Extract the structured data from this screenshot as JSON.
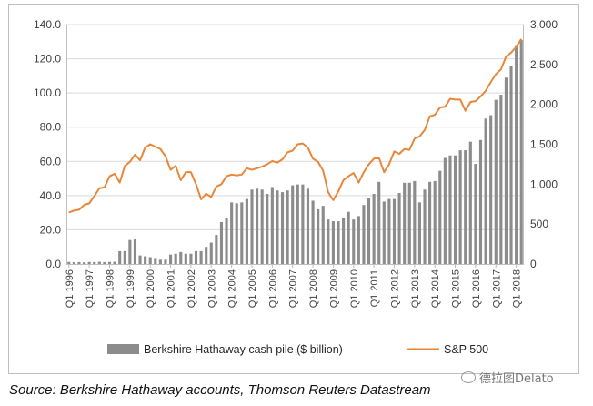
{
  "chart_data": {
    "type": "bar+line",
    "title": "",
    "xlabel": "",
    "ylabel": "",
    "y_left": {
      "min": 0,
      "max": 140,
      "step": 20,
      "tick_labels": [
        "0.0",
        "20.0",
        "40.0",
        "60.0",
        "80.0",
        "100.0",
        "120.0",
        "140.0"
      ]
    },
    "y_right": {
      "min": 0,
      "max": 3000,
      "step": 500,
      "tick_labels": [
        "0",
        "500",
        "1,000",
        "1,500",
        "2,000",
        "2,500",
        "3,000"
      ]
    },
    "x_tick_labels": [
      "Q1 1996",
      "Q1 1997",
      "Q1 1998",
      "Q1 1999",
      "Q1 2000",
      "Q1 2001",
      "Q1 2002",
      "Q1 2003",
      "Q1 2004",
      "Q1 2005",
      "Q1 2006",
      "Q1 2007",
      "Q1 2008",
      "Q1 2009",
      "Q1 2010",
      "Q1 2011",
      "Q1 2012",
      "Q1 2013",
      "Q1 2014",
      "Q1 2015",
      "Q1 2016",
      "Q1 2017",
      "Q1 2018"
    ],
    "gridlines": true,
    "legend_position": "bottom",
    "series": [
      {
        "name": "Berkshire Hathaway cash pile ($ billion)",
        "type": "bar",
        "axis": "left",
        "color": "#8c8c8c",
        "values": [
          1.2,
          1.0,
          1.1,
          1.0,
          1.2,
          1.1,
          1.3,
          1.1,
          1.2,
          1.3,
          7.5,
          7.5,
          14.0,
          14.5,
          5.0,
          4.5,
          4.0,
          3.5,
          2.5,
          2.5,
          5.5,
          6.0,
          7.0,
          6.0,
          6.0,
          7.5,
          7.5,
          10.0,
          12.5,
          17.0,
          24.5,
          27.0,
          36.0,
          35.5,
          36.0,
          38.0,
          43.5,
          44.0,
          43.5,
          41.0,
          45.0,
          43.0,
          42.0,
          43.0,
          46.0,
          46.5,
          46.5,
          44.0,
          37.0,
          32.0,
          34.0,
          26.0,
          25.0,
          25.0,
          27.0,
          30.5,
          26.0,
          28.0,
          34.5,
          38.5,
          41.0,
          48.0,
          36.5,
          38.0,
          38.0,
          41.5,
          47.5,
          47.5,
          48.5,
          36.0,
          43.5,
          48.0,
          48.5,
          54.5,
          62.0,
          63.5,
          63.5,
          66.5,
          66.5,
          71.5,
          58.5,
          72.5,
          85.0,
          87.0,
          96.0,
          99.0,
          109.0,
          116.0,
          128.0,
          131.0
        ]
      },
      {
        "name": "S&P 500",
        "type": "line",
        "axis": "right",
        "color": "#e8873a",
        "values": [
          645,
          670,
          680,
          740,
          760,
          850,
          950,
          960,
          1100,
          1130,
          1020,
          1230,
          1280,
          1370,
          1300,
          1460,
          1500,
          1470,
          1440,
          1350,
          1180,
          1230,
          1050,
          1150,
          1150,
          1000,
          810,
          880,
          840,
          970,
          1000,
          1100,
          1120,
          1110,
          1120,
          1200,
          1180,
          1200,
          1220,
          1250,
          1290,
          1270,
          1310,
          1400,
          1420,
          1500,
          1510,
          1460,
          1320,
          1280,
          1170,
          900,
          800,
          910,
          1050,
          1100,
          1140,
          1020,
          1150,
          1250,
          1320,
          1330,
          1150,
          1250,
          1410,
          1380,
          1440,
          1430,
          1570,
          1600,
          1680,
          1850,
          1870,
          1960,
          1970,
          2070,
          2060,
          2060,
          1920,
          2030,
          2040,
          2100,
          2170,
          2280,
          2380,
          2440,
          2600,
          2650,
          2720,
          2820
        ]
      }
    ]
  },
  "source_note": "Source: Berkshire Hathaway accounts, Thomson Reuters Datastream",
  "watermark": "德拉图Delato"
}
